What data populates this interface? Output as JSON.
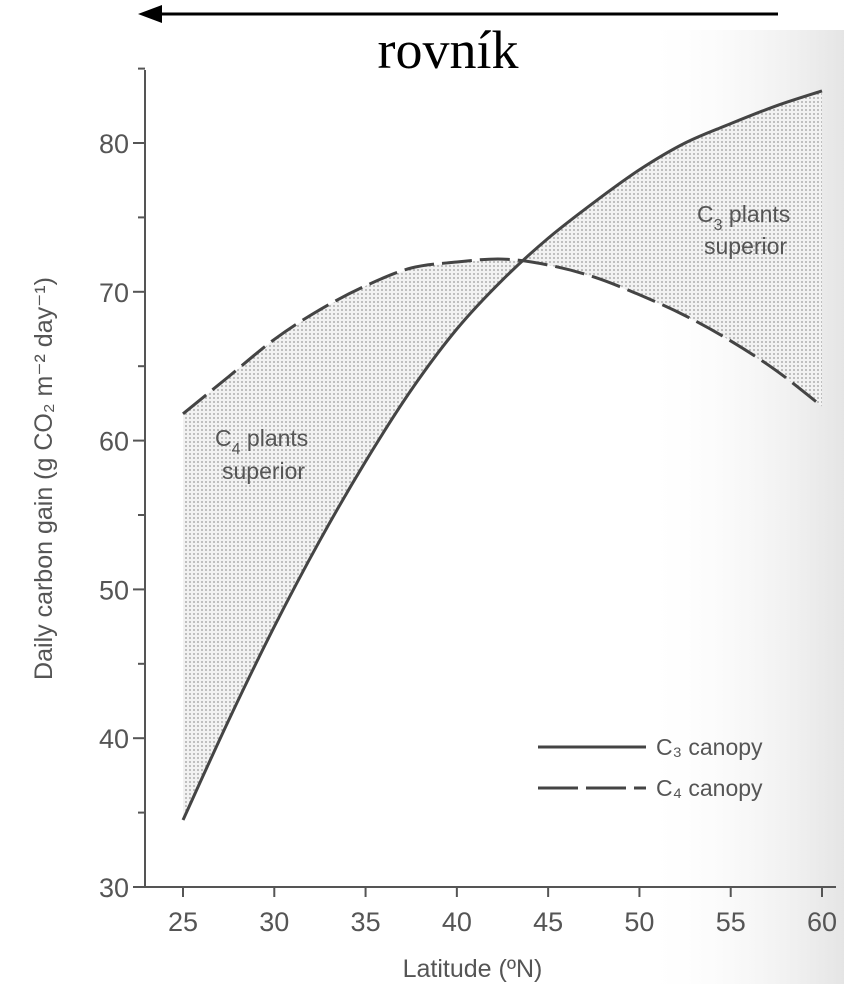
{
  "header": {
    "label": "rovník",
    "arrow_direction": "left"
  },
  "chart_data": {
    "type": "line",
    "title": "",
    "xlabel": "Latitude (ºN)",
    "ylabel": "Daily carbon gain (g CO₂ m⁻² day⁻¹)",
    "xlim": [
      23,
      60.2
    ],
    "ylim": [
      30,
      85
    ],
    "x_ticks": [
      25,
      30,
      35,
      40,
      45,
      50,
      55,
      60
    ],
    "y_ticks": [
      30,
      40,
      50,
      60,
      70,
      80
    ],
    "x": [
      25,
      27.5,
      30,
      32.5,
      35,
      37.5,
      40,
      42.5,
      45,
      47.5,
      50,
      52.5,
      55,
      57.5,
      60
    ],
    "series": [
      {
        "name": "C₃ canopy",
        "style": "solid",
        "values": [
          34.5,
          41.2,
          47.5,
          53.3,
          58.6,
          63.4,
          67.5,
          70.8,
          73.6,
          76.0,
          78.2,
          80.0,
          81.3,
          82.5,
          83.5
        ]
      },
      {
        "name": "C₄ canopy",
        "style": "dashed",
        "values": [
          61.8,
          64.3,
          66.8,
          68.8,
          70.4,
          71.6,
          72.0,
          72.2,
          71.8,
          71.0,
          69.8,
          68.4,
          66.7,
          64.7,
          62.3
        ]
      }
    ],
    "legend": {
      "position": "bottom-right"
    },
    "annotations": [
      {
        "text_main": "C",
        "text_sub": "4",
        "text_rest": " plants",
        "line2": "superior"
      },
      {
        "text_main": "C",
        "text_sub": "3",
        "text_rest": " plants",
        "line2": "superior"
      }
    ],
    "shade_color": "#c9c9c9",
    "line_color": "#444444"
  }
}
